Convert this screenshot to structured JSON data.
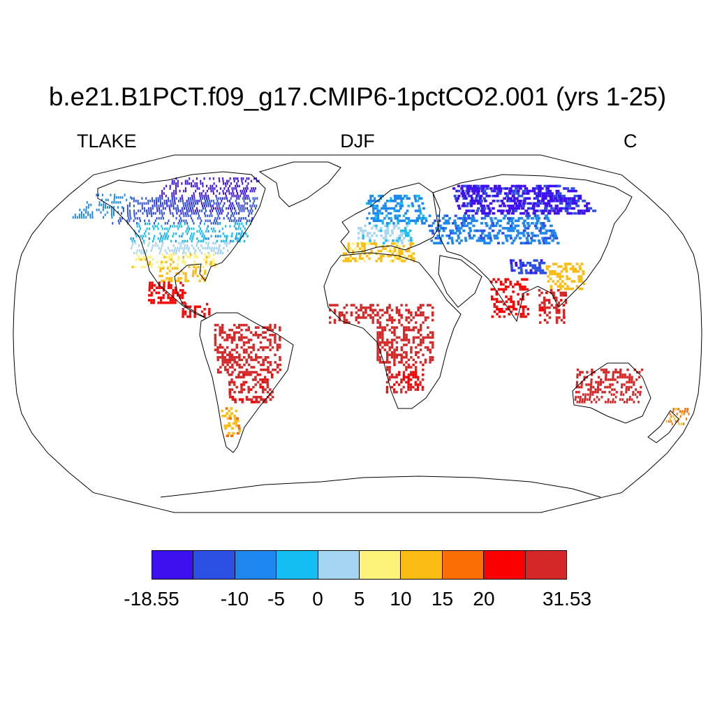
{
  "title": "b.e21.B1PCT.f09_g17.CMIP6-1pctCO2.001 (yrs 1-25)",
  "left_label": "TLAKE",
  "center_label": "DJF",
  "right_label": "C",
  "projection": "robinson",
  "colorbar": {
    "colors": [
      "#3d10f0",
      "#2d50e4",
      "#1e88f0",
      "#14bef2",
      "#a5d5f0",
      "#fdf37a",
      "#fbbc14",
      "#fb6e05",
      "#fb0000",
      "#d42828"
    ],
    "labels": [
      "-18.55",
      "-10",
      "-5",
      "0",
      "5",
      "10",
      "15",
      "20",
      "31.53"
    ],
    "boundaries": [
      -18.55,
      -15,
      -10,
      -5,
      0,
      5,
      10,
      15,
      20,
      25,
      31.53
    ]
  },
  "regions": [
    {
      "name": "canada-arctic",
      "lon": [
        -125,
        -65
      ],
      "lat": [
        60,
        78
      ],
      "value": -17
    },
    {
      "name": "canada-north",
      "lon": [
        -140,
        -60
      ],
      "lat": [
        55,
        68
      ],
      "value": -12
    },
    {
      "name": "alaska",
      "lon": [
        -165,
        -140
      ],
      "lat": [
        58,
        70
      ],
      "value": -8
    },
    {
      "name": "canada-south",
      "lon": [
        -125,
        -60
      ],
      "lat": [
        46,
        55
      ],
      "value": -4
    },
    {
      "name": "usa-north",
      "lon": [
        -123,
        -70
      ],
      "lat": [
        40,
        46
      ],
      "value": 2
    },
    {
      "name": "usa-central",
      "lon": [
        -120,
        -75
      ],
      "lat": [
        33,
        40
      ],
      "value": 9
    },
    {
      "name": "usa-south",
      "lon": [
        -105,
        -80
      ],
      "lat": [
        26,
        33
      ],
      "value": 13
    },
    {
      "name": "mexico",
      "lon": [
        -110,
        -90
      ],
      "lat": [
        15,
        26
      ],
      "value": 22
    },
    {
      "name": "central-america",
      "lon": [
        -92,
        -78
      ],
      "lat": [
        8,
        15
      ],
      "value": 24
    },
    {
      "name": "south-america-north",
      "lon": [
        -75,
        -40
      ],
      "lat": [
        -20,
        5
      ],
      "value": 28
    },
    {
      "name": "south-america-central",
      "lon": [
        -68,
        -45
      ],
      "lat": [
        -35,
        -20
      ],
      "value": 26
    },
    {
      "name": "patagonia",
      "lon": [
        -73,
        -65
      ],
      "lat": [
        -52,
        -38
      ],
      "value": 14
    },
    {
      "name": "europe-north",
      "lon": [
        5,
        40
      ],
      "lat": [
        55,
        70
      ],
      "value": -6
    },
    {
      "name": "europe-central",
      "lon": [
        0,
        30
      ],
      "lat": [
        45,
        55
      ],
      "value": 1
    },
    {
      "name": "mediterranean",
      "lon": [
        -8,
        30
      ],
      "lat": [
        36,
        45
      ],
      "value": 11
    },
    {
      "name": "siberia",
      "lon": [
        60,
        140
      ],
      "lat": [
        60,
        75
      ],
      "value": -16
    },
    {
      "name": "central-asia",
      "lon": [
        40,
        110
      ],
      "lat": [
        45,
        60
      ],
      "value": -9
    },
    {
      "name": "tibet",
      "lon": [
        80,
        100
      ],
      "lat": [
        30,
        37
      ],
      "value": -14
    },
    {
      "name": "china-east",
      "lon": [
        100,
        120
      ],
      "lat": [
        22,
        35
      ],
      "value": 12
    },
    {
      "name": "india",
      "lon": [
        70,
        90
      ],
      "lat": [
        8,
        28
      ],
      "value": 24
    },
    {
      "name": "southeast-asia",
      "lon": [
        95,
        110
      ],
      "lat": [
        5,
        22
      ],
      "value": 26
    },
    {
      "name": "africa-sahel",
      "lon": [
        -15,
        40
      ],
      "lat": [
        5,
        15
      ],
      "value": 27
    },
    {
      "name": "africa-central",
      "lon": [
        10,
        40
      ],
      "lat": [
        -15,
        5
      ],
      "value": 28
    },
    {
      "name": "africa-south",
      "lon": [
        15,
        35
      ],
      "lat": [
        -30,
        -15
      ],
      "value": 25
    },
    {
      "name": "australia",
      "lon": [
        115,
        150
      ],
      "lat": [
        -35,
        -18
      ],
      "value": 27
    },
    {
      "name": "new-zealand",
      "lon": [
        167,
        178
      ],
      "lat": [
        -46,
        -38
      ],
      "value": 16
    }
  ]
}
